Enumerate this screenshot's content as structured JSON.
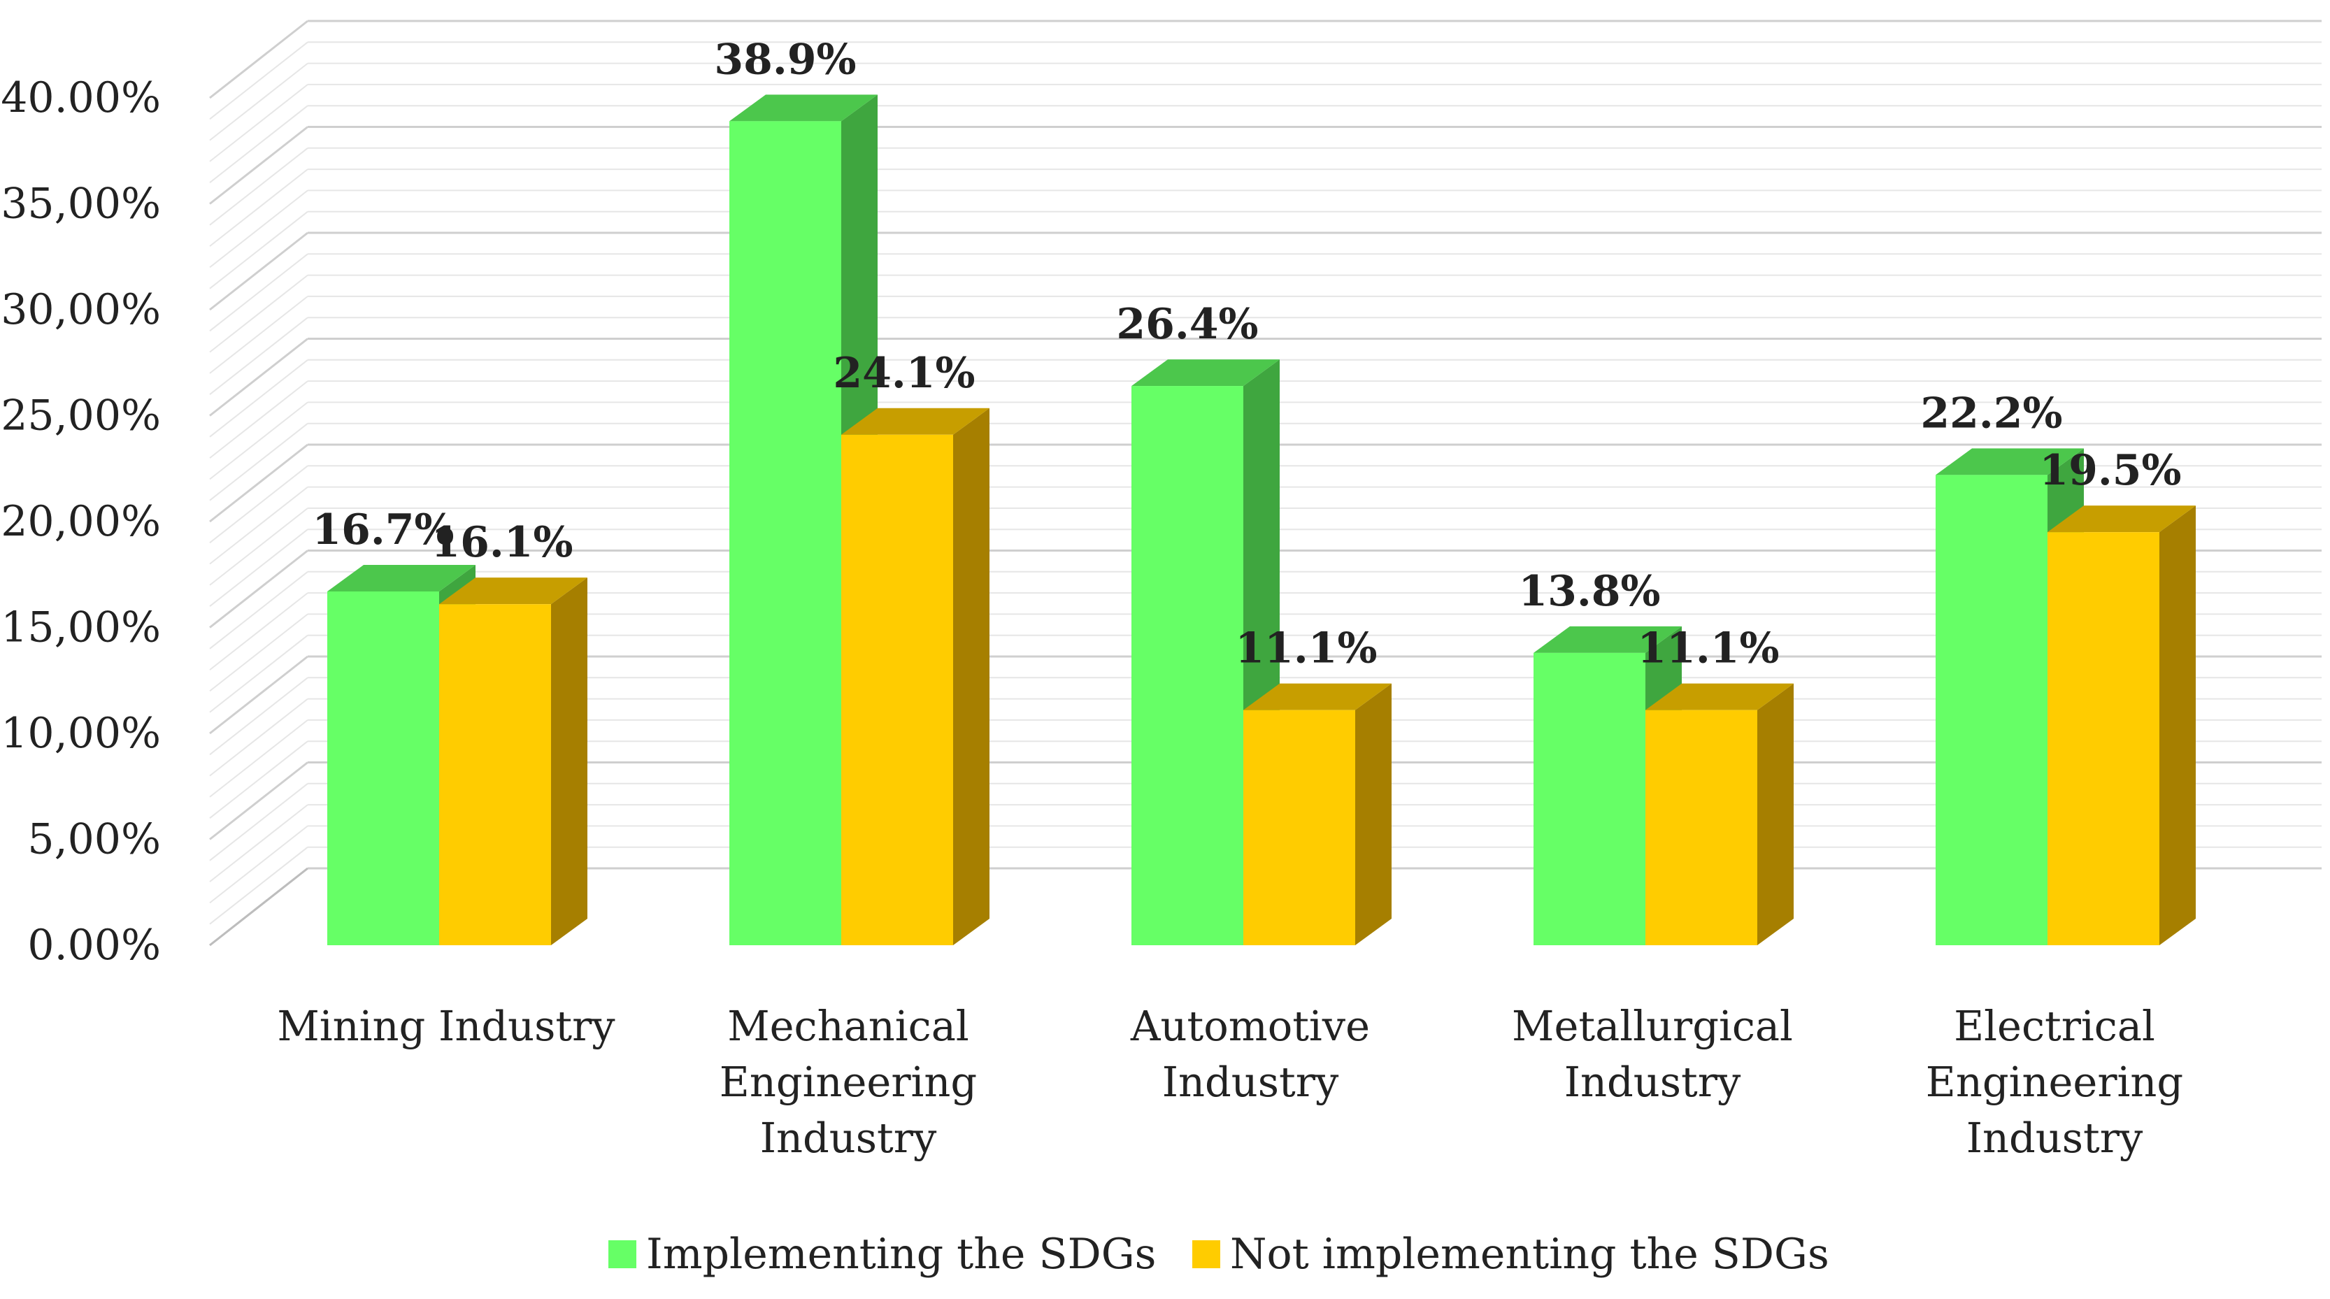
{
  "chart_data": {
    "type": "bar",
    "variant": "3d-clustered-column",
    "title": "",
    "xlabel": "",
    "ylabel": "",
    "categories": [
      [
        "Mining Industry"
      ],
      [
        "Mechanical",
        "Engineering",
        "Industry"
      ],
      [
        "Automotive",
        "Industry"
      ],
      [
        "Metallurgical",
        "Industry"
      ],
      [
        "Electrical",
        "Engineering",
        "Industry"
      ]
    ],
    "series": [
      {
        "name": "Implementing the SDGs",
        "color": "#66FF66",
        "side_color": "#3FA63F",
        "top_color": "#4CC74C",
        "values": [
          16.7,
          38.9,
          26.4,
          13.8,
          22.2
        ],
        "labels": [
          "16.7%",
          "38.9%",
          "26.4%",
          "13.8%",
          "22.2%"
        ]
      },
      {
        "name": "Not implementing the SDGs",
        "color": "#FFCC00",
        "side_color": "#A67F00",
        "top_color": "#C79E00",
        "values": [
          16.1,
          24.1,
          11.1,
          11.1,
          19.5
        ],
        "labels": [
          "16.1%",
          "24.1%",
          "11.1%",
          "11.1%",
          "19.5%"
        ]
      }
    ],
    "ylim": [
      0,
      40
    ],
    "y_ticks": [
      {
        "value": 0,
        "label": "0.00%"
      },
      {
        "value": 5,
        "label": "5,00%"
      },
      {
        "value": 10,
        "label": "10,00%"
      },
      {
        "value": 15,
        "label": "15,00%"
      },
      {
        "value": 20,
        "label": "20,00%"
      },
      {
        "value": 25,
        "label": "25,00%"
      },
      {
        "value": 30,
        "label": "30,00%"
      },
      {
        "value": 35,
        "label": "35,00%"
      },
      {
        "value": 40,
        "label": "40.00%"
      }
    ],
    "grid": true,
    "legend_position": "bottom"
  }
}
